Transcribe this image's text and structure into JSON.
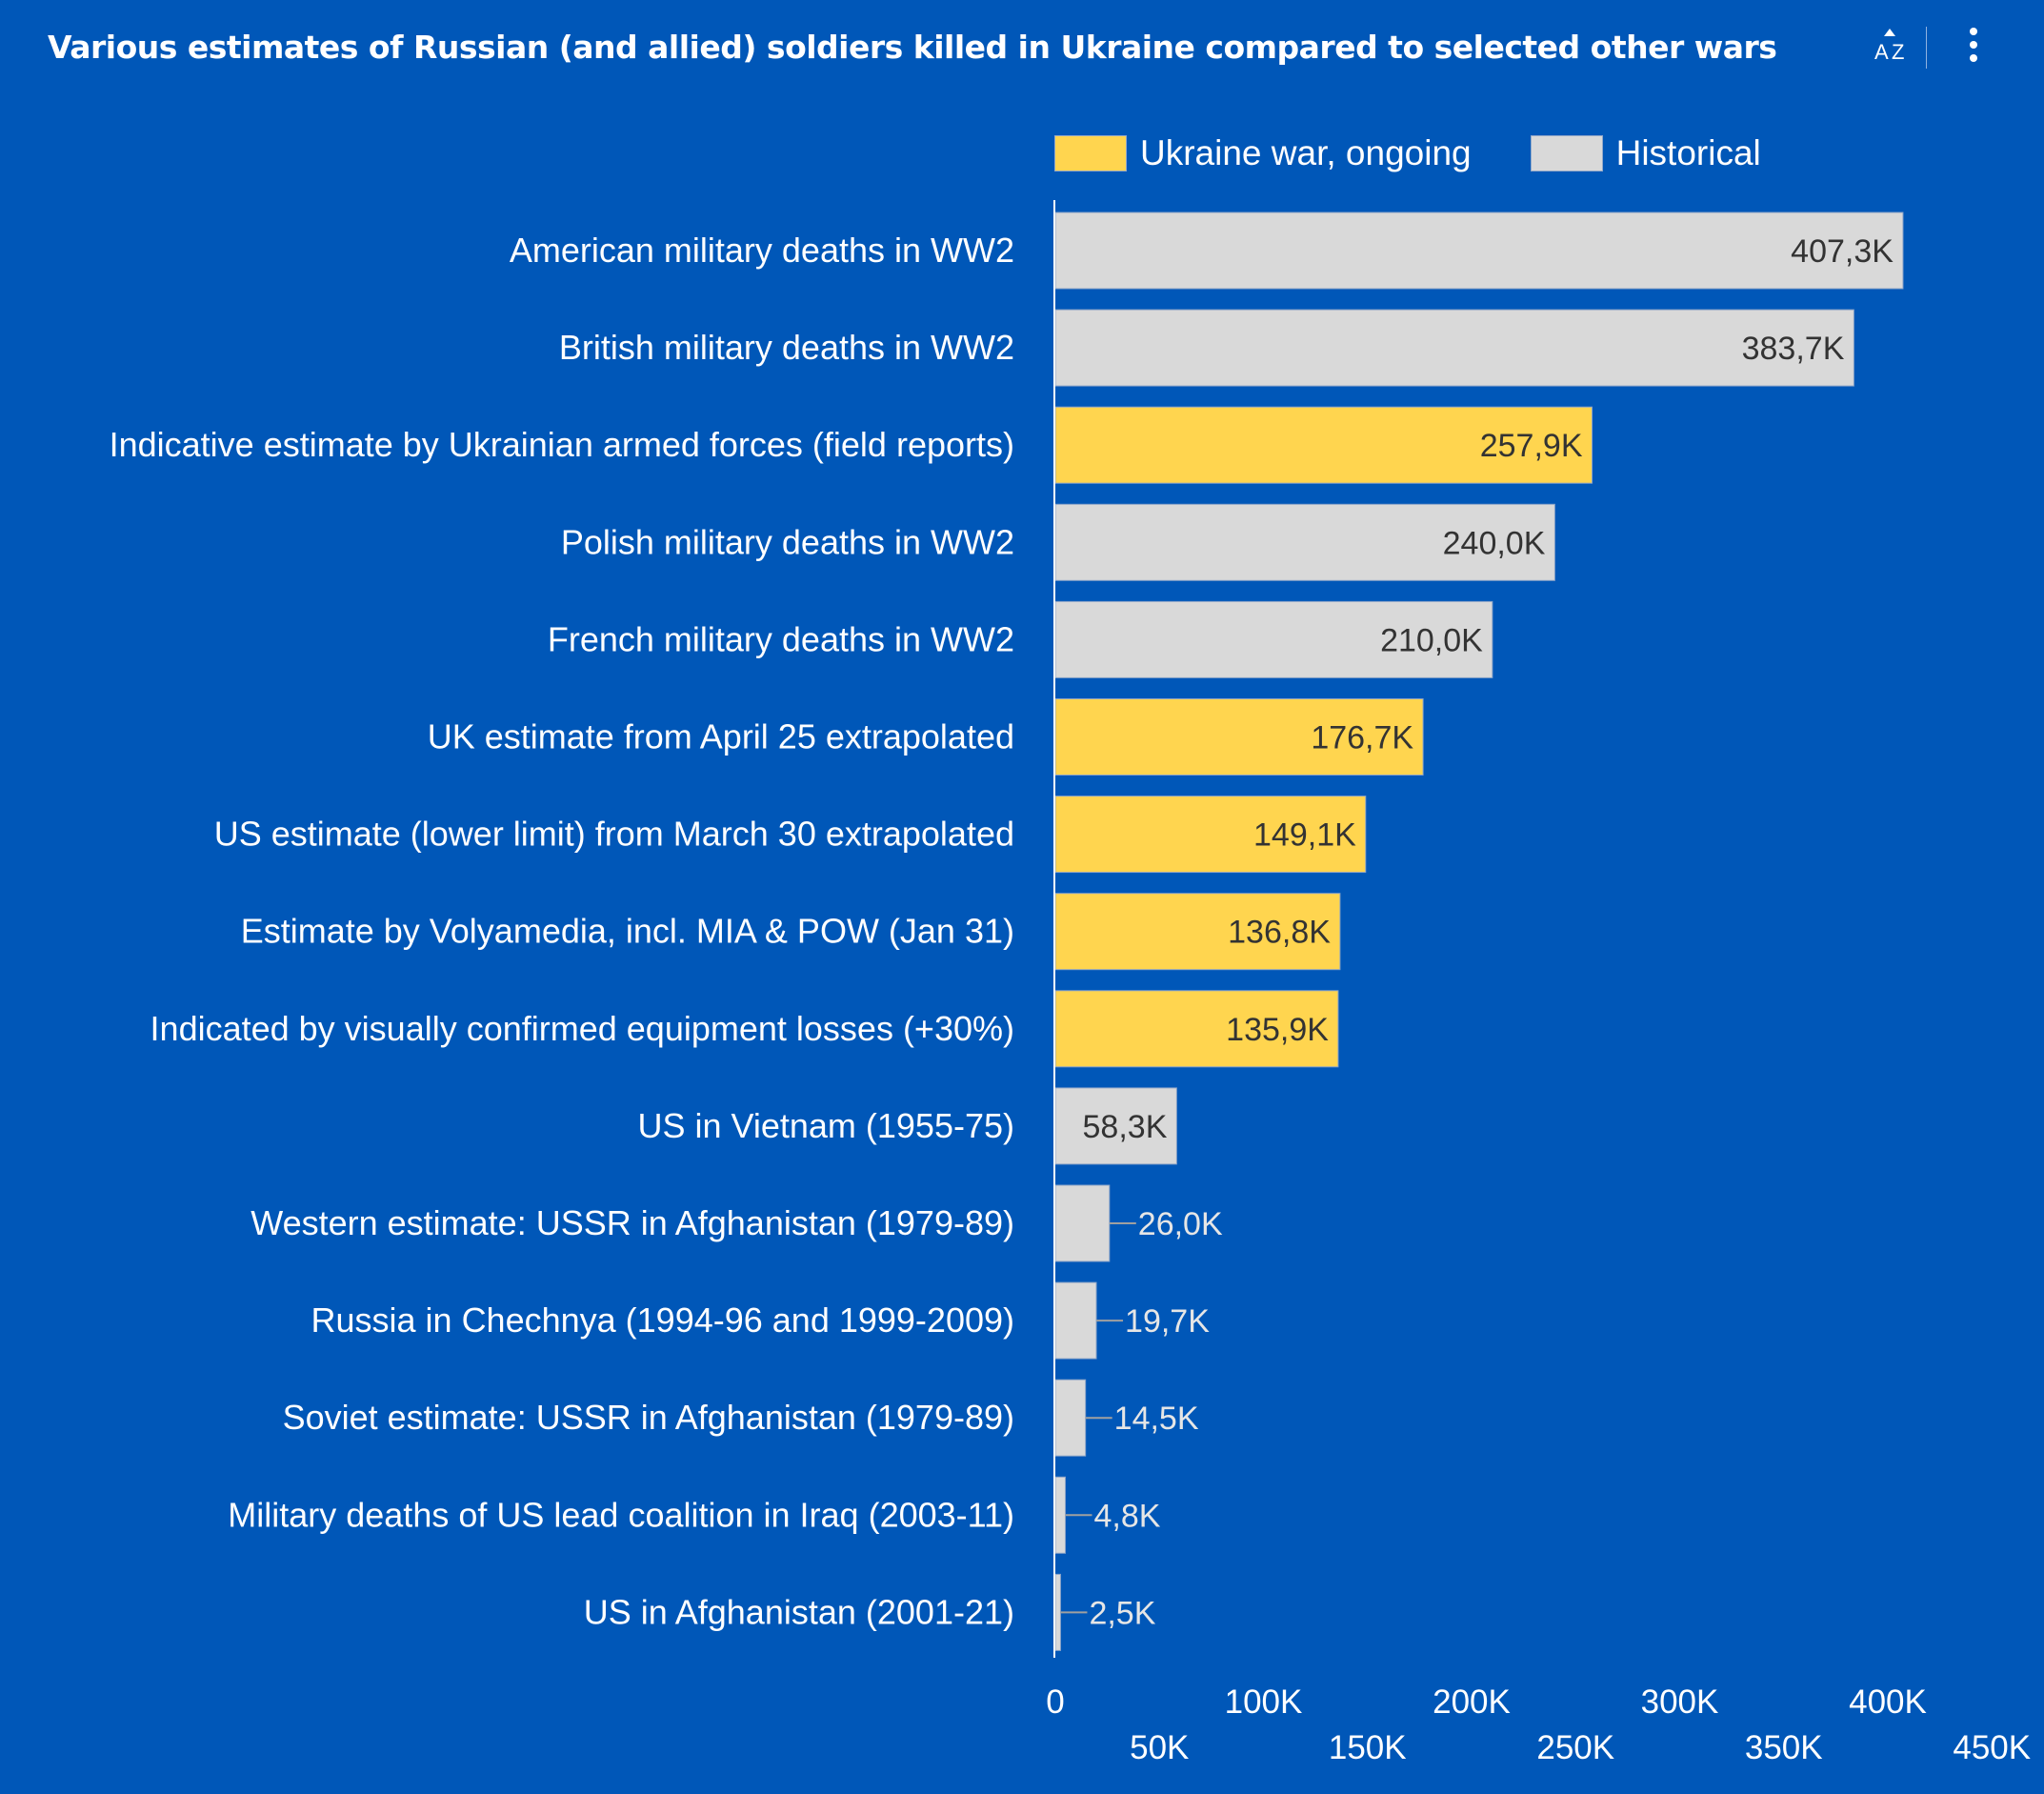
{
  "title": "Various estimates of Russian (and allied) soldiers killed in Ukraine compared to selected other wars",
  "toolbar": {
    "sort_icon": "sort-az-icon",
    "more_icon": "more-vertical-icon"
  },
  "colors": {
    "background": "#0057b8",
    "ukraine": "#ffd54f",
    "historical": "#d9d9d9",
    "value_text_inside": "#333333",
    "value_text_outside": "#e6e6e6"
  },
  "legend": [
    {
      "label": "Ukraine war, ongoing",
      "color": "#ffd54f"
    },
    {
      "label": "Historical",
      "color": "#d9d9d9"
    }
  ],
  "chart_data": {
    "type": "bar",
    "orientation": "horizontal",
    "title": "Various estimates of Russian (and allied) soldiers killed in Ukraine compared to selected other wars",
    "xlabel": "",
    "ylabel": "",
    "xlim": [
      0,
      450000
    ],
    "grid": false,
    "legend_position": "top-right",
    "x_ticks": [
      0,
      50000,
      100000,
      150000,
      200000,
      250000,
      300000,
      350000,
      400000,
      450000
    ],
    "x_tick_labels": [
      "0",
      "50K",
      "100K",
      "150K",
      "200K",
      "250K",
      "300K",
      "350K",
      "400K",
      "450K"
    ],
    "categories": [
      "American military deaths in WW2",
      "British military deaths in WW2",
      "Indicative estimate by Ukrainian armed forces (field reports)",
      "Polish military deaths in WW2",
      "French military deaths in WW2",
      "UK estimate from April 25 extrapolated",
      "US estimate (lower limit) from March 30 extrapolated",
      "Estimate by Volyamedia, incl. MIA & POW (Jan 31)",
      "Indicated by visually confirmed equipment losses (+30%)",
      "US in Vietnam (1955-75)",
      "Western estimate: USSR in Afghanistan (1979-89)",
      "Russia in Chechnya (1994-96 and 1999-2009)",
      "Soviet estimate: USSR in Afghanistan (1979-89)",
      "Military deaths of US lead coalition in Iraq (2003-11)",
      "US in Afghanistan (2001-21)"
    ],
    "values": [
      407300,
      383700,
      257900,
      240000,
      210000,
      176700,
      149100,
      136800,
      135900,
      58300,
      26000,
      19700,
      14500,
      4800,
      2500
    ],
    "value_labels": [
      "407,3K",
      "383,7K",
      "257,9K",
      "240,0K",
      "210,0K",
      "176,7K",
      "149,1K",
      "136,8K",
      "135,9K",
      "58,3K",
      "26,0K",
      "19,7K",
      "14,5K",
      "4,8K",
      "2,5K"
    ],
    "series_group": [
      "Historical",
      "Historical",
      "Ukraine war, ongoing",
      "Historical",
      "Historical",
      "Ukraine war, ongoing",
      "Ukraine war, ongoing",
      "Ukraine war, ongoing",
      "Ukraine war, ongoing",
      "Historical",
      "Historical",
      "Historical",
      "Historical",
      "Historical",
      "Historical"
    ]
  }
}
